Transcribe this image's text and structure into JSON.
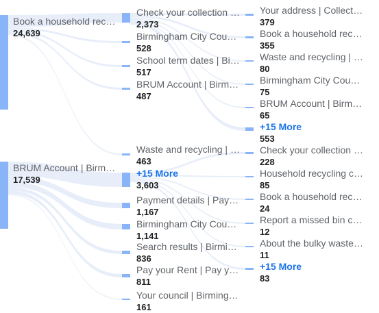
{
  "colors": {
    "node": "#8ab4f8",
    "flow": "#e8eef9",
    "label": "#5f6368",
    "value": "#202124",
    "more_link": "#1a73e8"
  },
  "columns": [
    {
      "nodes": [
        {
          "label": "Book a household recyc…",
          "value": "24,639"
        },
        {
          "label": "BRUM Account | Birmi…",
          "value": "17,539"
        }
      ]
    },
    {
      "nodes": [
        {
          "label": "Check your collection …",
          "value": "2,373"
        },
        {
          "label": "Birmingham City Coun…",
          "value": "528"
        },
        {
          "label": "School term dates | Bir…",
          "value": "517"
        },
        {
          "label": "BRUM Account | Birmi…",
          "value": "487"
        },
        {
          "label": "Waste and recycling | …",
          "value": "463"
        },
        {
          "label": "+15 More",
          "value": "3,603"
        },
        {
          "label": "Payment details | Pay …",
          "value": "1,167"
        },
        {
          "label": "Birmingham City Coun…",
          "value": "1,141"
        },
        {
          "label": "Search results | Birmin…",
          "value": "836"
        },
        {
          "label": "Pay your Rent | Pay yo…",
          "value": "811"
        },
        {
          "label": "Your council | Birming…",
          "value": "161"
        }
      ]
    },
    {
      "nodes": [
        {
          "label": "Your address | Collecti…",
          "value": "379"
        },
        {
          "label": "Book a household recy…",
          "value": "355"
        },
        {
          "label": "Waste and recycling | …",
          "value": "80"
        },
        {
          "label": "Birmingham City Coun…",
          "value": "75"
        },
        {
          "label": "BRUM Account | Birmi…",
          "value": "65"
        },
        {
          "label": "+15 More",
          "value": "553"
        },
        {
          "label": "Check your collection …",
          "value": "228"
        },
        {
          "label": "Household recycling c…",
          "value": "85"
        },
        {
          "label": "Book a household recy…",
          "value": "24"
        },
        {
          "label": "Report a missed bin c…",
          "value": "12"
        },
        {
          "label": "About the bulky waste …",
          "value": "11"
        },
        {
          "label": "+15 More",
          "value": "83"
        }
      ]
    }
  ]
}
